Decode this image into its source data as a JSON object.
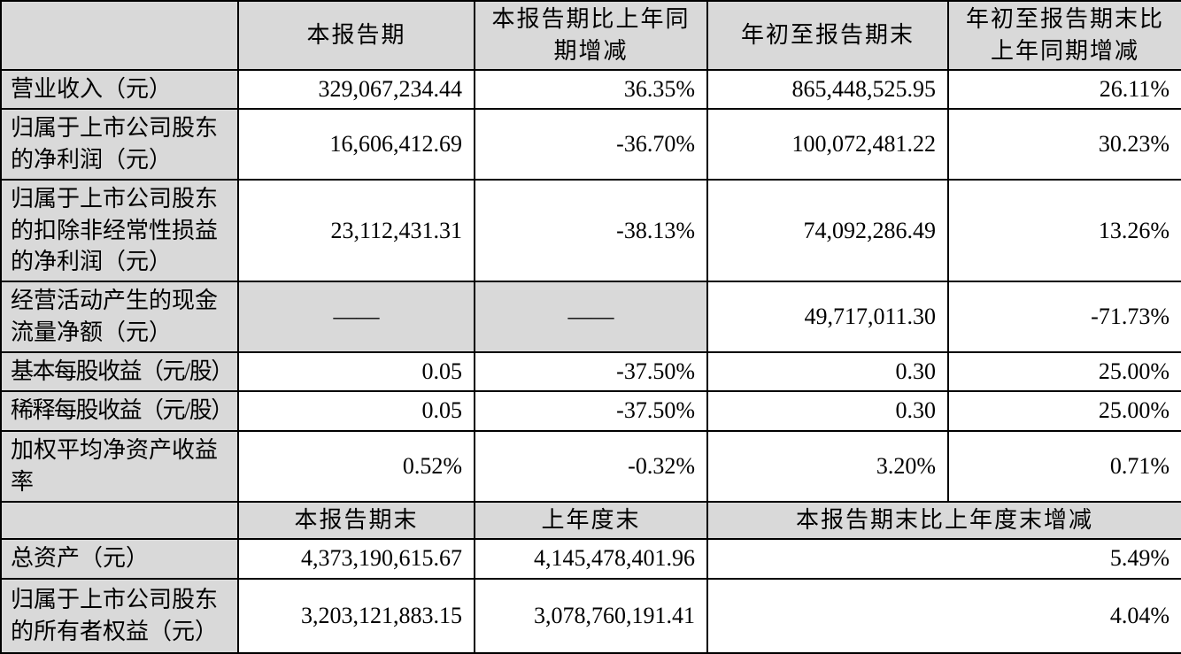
{
  "colors": {
    "header_bg": "#d9d9d9",
    "border": "#000000",
    "text": "#000000"
  },
  "dash": "——",
  "table": {
    "section1": {
      "headers": {
        "current_period": "本报告期",
        "current_period_yoy": "本报告期比上年同期增减",
        "ytd": "年初至报告期末",
        "ytd_yoy": "年初至报告期末比上年同期增减"
      },
      "rows": [
        {
          "label": "营业收入（元）",
          "current": "329,067,234.44",
          "current_yoy": "36.35%",
          "ytd": "865,448,525.95",
          "ytd_yoy": "26.11%"
        },
        {
          "label": "归属于上市公司股东的净利润（元）",
          "current": "16,606,412.69",
          "current_yoy": "-36.70%",
          "ytd": "100,072,481.22",
          "ytd_yoy": "30.23%"
        },
        {
          "label": "归属于上市公司股东的扣除非经常性损益的净利润（元）",
          "current": "23,112,431.31",
          "current_yoy": "-38.13%",
          "ytd": "74,092,286.49",
          "ytd_yoy": "13.26%"
        },
        {
          "label": "经营活动产生的现金流量净额（元）",
          "current": "——",
          "current_yoy": "——",
          "ytd": "49,717,011.30",
          "ytd_yoy": "-71.73%"
        },
        {
          "label": "基本每股收益（元/股）",
          "current": "0.05",
          "current_yoy": "-37.50%",
          "ytd": "0.30",
          "ytd_yoy": "25.00%"
        },
        {
          "label": "稀释每股收益（元/股）",
          "current": "0.05",
          "current_yoy": "-37.50%",
          "ytd": "0.30",
          "ytd_yoy": "25.00%"
        },
        {
          "label": "加权平均净资产收益率",
          "current": "0.52%",
          "current_yoy": "-0.32%",
          "ytd": "3.20%",
          "ytd_yoy": "0.71%"
        }
      ]
    },
    "section2": {
      "headers": {
        "period_end": "本报告期末",
        "prev_year_end": "上年度末",
        "change": "本报告期末比上年度末增减"
      },
      "rows": [
        {
          "label": "总资产（元）",
          "period_end": "4,373,190,615.67",
          "prev_year_end": "4,145,478,401.96",
          "change": "5.49%"
        },
        {
          "label": "归属于上市公司股东的所有者权益（元）",
          "period_end": "3,203,121,883.15",
          "prev_year_end": "3,078,760,191.41",
          "change": "4.04%"
        }
      ]
    }
  }
}
